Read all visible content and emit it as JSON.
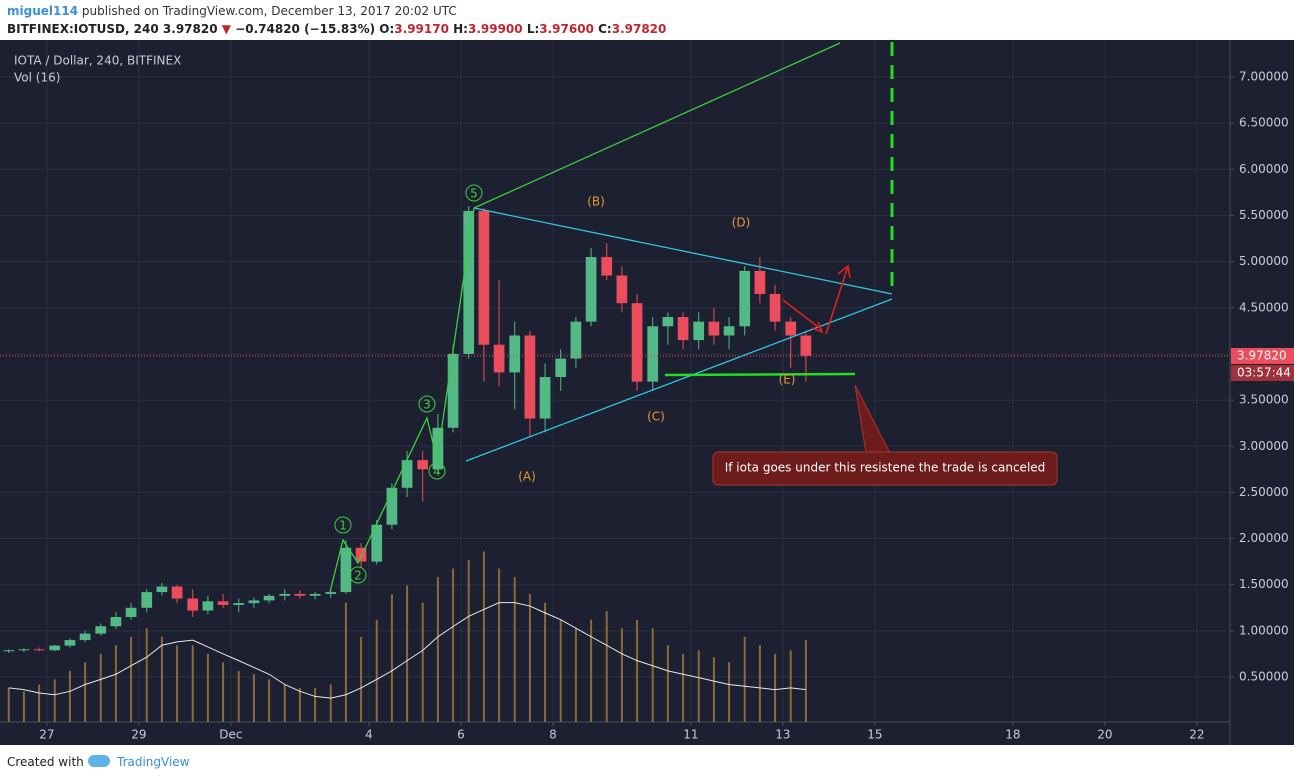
{
  "header": {
    "author": "miguel114",
    "published": "published on TradingView.com, December 13, 2017 20:02 UTC",
    "symbol": "BITFINEX:IOTUSD, 240",
    "price": "3.97820",
    "change": "−0.74820 (−15.83%)",
    "ohlc": [
      "O:",
      "3.99170",
      "H:",
      "3.99900",
      "L:",
      "3.97600",
      "C:",
      "3.97820"
    ]
  },
  "footer": {
    "created": "Created with",
    "brand": "TradingView"
  },
  "chart_data": {
    "type": "candlestick",
    "title": "IOTA / Dollar, 240, BITFINEX",
    "volume_label": "Vol (16)",
    "x": [
      -0.83,
      -0.5,
      -0.17,
      0.17,
      0.5,
      0.83,
      1.17,
      1.5,
      1.83,
      2.17,
      2.5,
      2.83,
      3.17,
      3.5,
      3.83,
      4.17,
      4.5,
      4.83,
      5.17,
      5.5,
      5.83,
      6.17,
      6.5,
      6.83,
      7.17,
      7.5,
      7.83,
      8.17,
      8.5,
      8.83,
      9.17,
      9.5,
      9.83,
      10.17,
      10.5,
      10.83,
      11.17,
      11.5,
      11.83,
      12.17,
      12.5,
      12.83,
      13.17,
      13.5,
      13.83,
      14.17,
      14.5,
      14.83,
      15.17,
      15.5,
      15.83,
      16.17,
      16.5
    ],
    "open": [
      0.78,
      0.79,
      0.8,
      0.79,
      0.84,
      0.9,
      0.97,
      1.05,
      1.15,
      1.25,
      1.42,
      1.48,
      1.35,
      1.22,
      1.32,
      1.28,
      1.3,
      1.33,
      1.38,
      1.4,
      1.38,
      1.4,
      1.42,
      1.9,
      1.75,
      2.15,
      2.55,
      2.85,
      2.75,
      3.2,
      4.0,
      5.55,
      4.1,
      3.8,
      4.2,
      3.3,
      3.75,
      3.95,
      4.35,
      5.05,
      4.85,
      4.55,
      3.7,
      4.3,
      4.4,
      4.15,
      4.35,
      4.2,
      4.3,
      4.9,
      4.65,
      4.35,
      4.2
    ],
    "high": [
      0.8,
      0.81,
      0.82,
      0.85,
      0.92,
      1.0,
      1.08,
      1.2,
      1.3,
      1.45,
      1.52,
      1.5,
      1.45,
      1.38,
      1.4,
      1.35,
      1.36,
      1.4,
      1.45,
      1.44,
      1.42,
      1.45,
      1.98,
      1.95,
      2.2,
      2.6,
      2.95,
      2.95,
      3.35,
      4.1,
      5.6,
      5.58,
      4.8,
      4.35,
      4.25,
      3.9,
      4.05,
      4.4,
      5.15,
      5.2,
      4.95,
      4.65,
      4.4,
      4.45,
      4.45,
      4.45,
      4.5,
      4.4,
      4.95,
      5.05,
      4.75,
      4.4,
      4.25
    ],
    "low": [
      0.76,
      0.77,
      0.78,
      0.78,
      0.82,
      0.88,
      0.95,
      1.02,
      1.12,
      1.2,
      1.38,
      1.3,
      1.15,
      1.18,
      1.25,
      1.2,
      1.25,
      1.3,
      1.33,
      1.35,
      1.34,
      1.36,
      1.4,
      1.68,
      1.72,
      2.1,
      2.45,
      2.4,
      2.7,
      3.15,
      3.95,
      3.7,
      3.65,
      3.4,
      3.1,
      3.15,
      3.6,
      3.85,
      4.3,
      4.8,
      4.45,
      3.6,
      3.6,
      4.1,
      4.05,
      4.05,
      4.1,
      4.05,
      4.2,
      4.55,
      4.25,
      3.85,
      3.7
    ],
    "close": [
      0.79,
      0.8,
      0.79,
      0.84,
      0.9,
      0.97,
      1.05,
      1.15,
      1.25,
      1.42,
      1.48,
      1.35,
      1.22,
      1.32,
      1.28,
      1.3,
      1.33,
      1.38,
      1.4,
      1.38,
      1.4,
      1.42,
      1.9,
      1.75,
      2.15,
      2.55,
      2.85,
      2.75,
      3.2,
      4.0,
      5.55,
      4.1,
      3.8,
      4.2,
      3.3,
      3.75,
      3.95,
      4.35,
      5.05,
      4.85,
      4.55,
      3.7,
      4.3,
      4.4,
      4.15,
      4.35,
      4.2,
      4.3,
      4.9,
      4.65,
      4.35,
      4.2,
      3.98
    ],
    "volume": [
      20,
      18,
      22,
      25,
      30,
      35,
      40,
      45,
      50,
      55,
      50,
      45,
      45,
      40,
      35,
      30,
      28,
      25,
      22,
      20,
      20,
      22,
      70,
      50,
      60,
      75,
      80,
      70,
      85,
      90,
      95,
      100,
      90,
      85,
      75,
      70,
      60,
      55,
      60,
      65,
      55,
      60,
      55,
      45,
      40,
      42,
      38,
      35,
      50,
      45,
      40,
      42,
      48
    ],
    "volume_ma": [
      20,
      19,
      17,
      16,
      18,
      22,
      25,
      28,
      33,
      38,
      45,
      47,
      48,
      44,
      40,
      36,
      32,
      28,
      22,
      18,
      15,
      14,
      16,
      20,
      25,
      30,
      36,
      42,
      50,
      56,
      62,
      66,
      70,
      70,
      68,
      64,
      60,
      55,
      50,
      45,
      40,
      36,
      33,
      30,
      28,
      26,
      24,
      22,
      21,
      20,
      19,
      20,
      19
    ],
    "up_color": "#53b987",
    "down_color": "#eb4d5c",
    "volume_color": "#8a6a3a",
    "ma_color": "#e8e8e8",
    "xlim": [
      -1.02,
      25.72
    ],
    "ylim": [
      0.0125,
      7.4015
    ],
    "vlim": [
      0,
      400
    ],
    "xticks": [
      {
        "value": 0,
        "label": "27"
      },
      {
        "value": 2,
        "label": "29"
      },
      {
        "value": 4,
        "label": "Dec"
      },
      {
        "value": 7,
        "label": "4"
      },
      {
        "value": 9,
        "label": "6"
      },
      {
        "value": 11,
        "label": "8"
      },
      {
        "value": 14,
        "label": "11"
      },
      {
        "value": 16,
        "label": "13"
      },
      {
        "value": 18,
        "label": "15"
      },
      {
        "value": 21,
        "label": "18"
      },
      {
        "value": 23,
        "label": "20"
      },
      {
        "value": 25,
        "label": "22"
      }
    ],
    "yticks": [
      {
        "value": 0.5,
        "label": "0.50000"
      },
      {
        "value": 1.0,
        "label": "1.00000"
      },
      {
        "value": 1.5,
        "label": "1.50000"
      },
      {
        "value": 2.0,
        "label": "2.00000"
      },
      {
        "value": 2.5,
        "label": "2.50000"
      },
      {
        "value": 3.0,
        "label": "3.00000"
      },
      {
        "value": 3.5,
        "label": "3.50000"
      },
      {
        "value": 4.0,
        "label": "4.00000"
      },
      {
        "value": 4.5,
        "label": "4.50000"
      },
      {
        "value": 5.0,
        "label": "5.00000"
      },
      {
        "value": 5.5,
        "label": "5.50000"
      },
      {
        "value": 6.0,
        "label": "6.00000"
      },
      {
        "value": 6.5,
        "label": "6.50000"
      },
      {
        "value": 7.0,
        "label": "7.00000"
      }
    ],
    "grid": true,
    "last_price": {
      "value": 3.9782,
      "label": "3.97820"
    },
    "countdown": "03:57:44",
    "waves": [
      "1",
      "2",
      "3",
      "4",
      "5"
    ],
    "corrections": [
      "(A)",
      "(B)",
      "(C)",
      "(D)",
      "(E)"
    ],
    "callout": "If iota goes under this resistene the trade is canceled"
  }
}
